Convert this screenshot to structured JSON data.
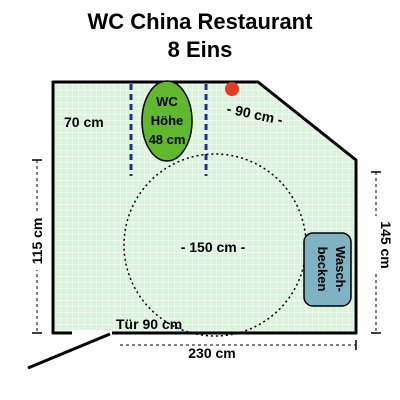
{
  "title": {
    "line1": "WC China Restaurant",
    "line2": "8 Eins"
  },
  "labels": {
    "width_left": "70 cm",
    "width_diagonal": "- 90 cm -",
    "circle_diameter": "- 150 cm -",
    "door": "Tür 90 cm",
    "bottom_width": "230 cm",
    "left_height": "115 cm",
    "right_height": "145 cm",
    "wc_line1": "WC",
    "wc_line2": "Höhe",
    "wc_line3": "48 cm",
    "sink_line1": "Wasch-",
    "sink_line2": "becken"
  },
  "colors": {
    "floor": "#d9f5d9",
    "grid": "#ffffff",
    "wall": "#000000",
    "wc": "#5fb82e",
    "sink": "#7fb2c2",
    "grab_bar": "#1f2f8f",
    "alarm": "#e53b1e"
  }
}
